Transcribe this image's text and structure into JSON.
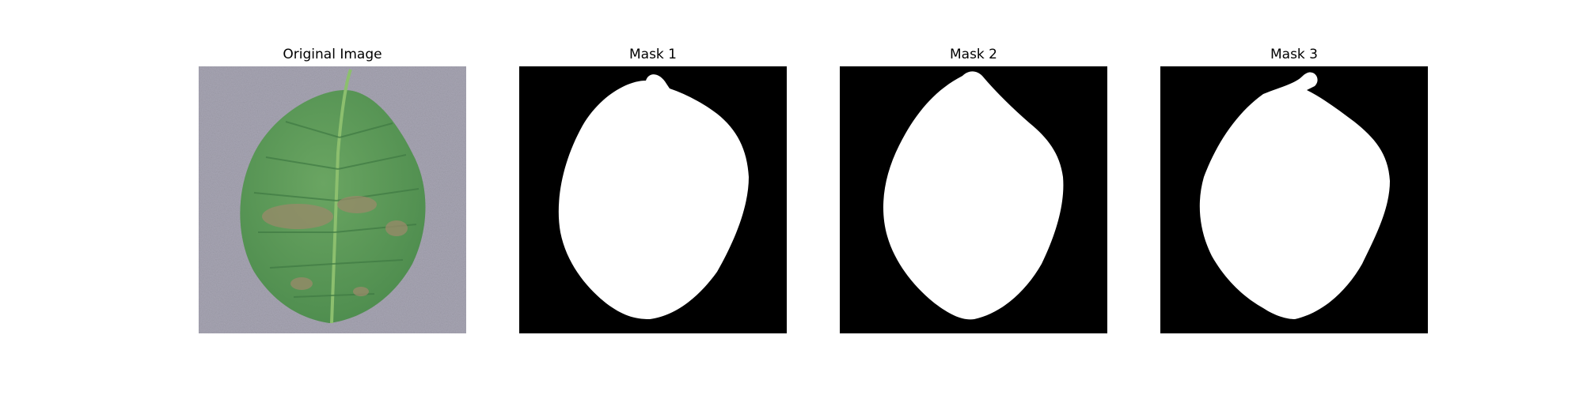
{
  "panels": [
    {
      "title": "Original Image",
      "kind": "photo"
    },
    {
      "title": "Mask 1",
      "kind": "mask"
    },
    {
      "title": "Mask 2",
      "kind": "mask"
    },
    {
      "title": "Mask 3",
      "kind": "mask"
    }
  ],
  "colors": {
    "background_photo": "#a7a5b3",
    "leaf_green": "#5f9a5a",
    "leaf_dark": "#3f7a43",
    "lesion_brown": "#9a8a6a",
    "mask_background": "#000000",
    "mask_foreground": "#ffffff"
  }
}
